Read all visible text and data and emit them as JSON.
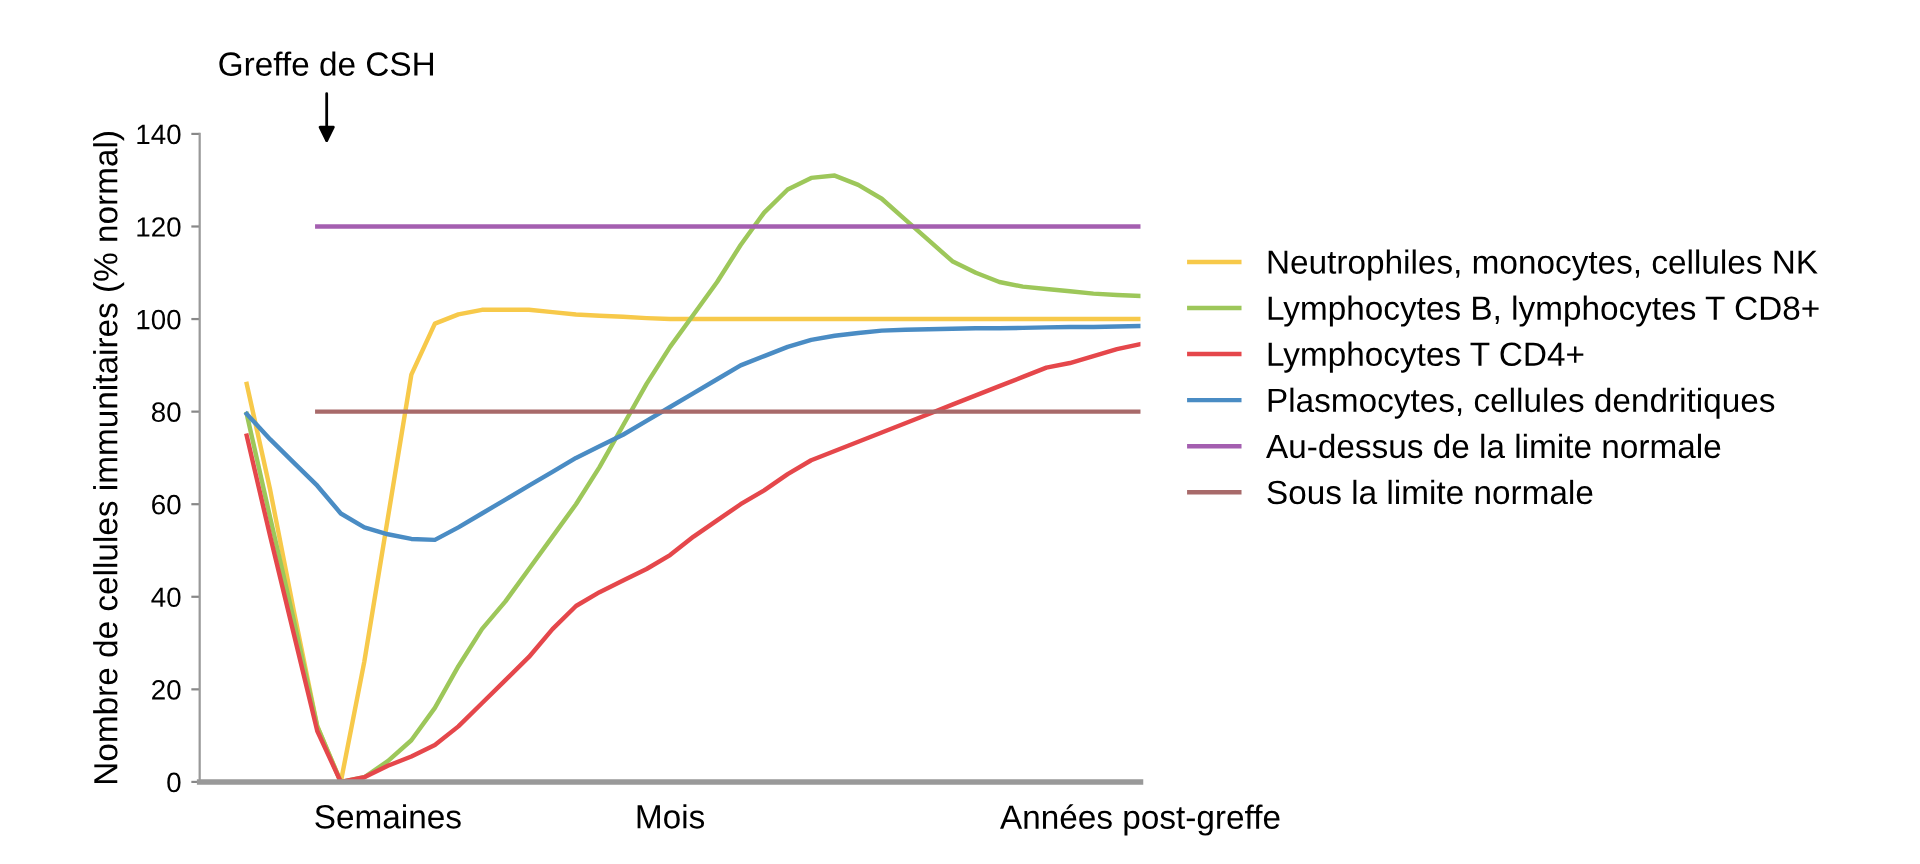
{
  "chart_data": {
    "type": "line",
    "ylabel": "Nombre de cellules immunitaires (% normal)",
    "categories": [
      null,
      null,
      null,
      null,
      null,
      null,
      null,
      null,
      "Semaines",
      null,
      null,
      null,
      null,
      null,
      null,
      null,
      null,
      null,
      null,
      null,
      "Mois",
      null,
      null,
      null,
      null,
      null,
      null,
      null,
      null,
      null,
      null,
      null,
      null,
      null,
      null,
      null,
      null,
      null,
      null,
      null,
      "Années post-greffe"
    ],
    "ylim": [
      0,
      140
    ],
    "yticks": [
      0,
      20,
      40,
      60,
      80,
      100,
      120,
      140
    ],
    "legend": "right",
    "line_style": "solid",
    "annotations": [
      "Greffe de CSH"
    ],
    "series": [
      {
        "name": "Neutrophiles, monocytes, cellules NK",
        "color": "#f7c94a",
        "values": [
          null,
          null,
          86,
          63,
          37,
          12,
          0,
          26,
          57,
          88,
          99,
          101,
          102,
          102,
          102,
          101.5,
          101,
          100.7,
          100.5,
          100.2,
          100,
          100,
          100,
          100,
          100,
          100,
          100,
          100,
          100,
          100,
          100,
          100,
          100,
          100,
          100,
          100,
          100,
          100,
          100,
          100,
          100
        ]
      },
      {
        "name": "Lymphocytes B, lymphocytes T CD8+",
        "color": "#9dc75a",
        "values": [
          null,
          null,
          79.5,
          57,
          35,
          12,
          0,
          1,
          4.5,
          9,
          16,
          25,
          33,
          39,
          46,
          53,
          60,
          68,
          77,
          86,
          94,
          101,
          108,
          116,
          123,
          128,
          130.5,
          131,
          129,
          126,
          121.5,
          117,
          112.5,
          110,
          108,
          107,
          106.5,
          106,
          105.5,
          105.2,
          105
        ]
      },
      {
        "name": "Lymphocytes T CD4+",
        "color": "#e5474b",
        "values": [
          null,
          null,
          74.8,
          53,
          32,
          11,
          0,
          1,
          3.5,
          5.5,
          8,
          12,
          17,
          22,
          27,
          33,
          38,
          41,
          43.5,
          46,
          49,
          53,
          56.5,
          60,
          63,
          66.5,
          69.5,
          71.5,
          73.5,
          75.5,
          77.5,
          79.5,
          81.5,
          83.5,
          85.5,
          87.5,
          89.5,
          90.5,
          92,
          93.5,
          94.6
        ]
      },
      {
        "name": "Plasmocytes, cellules dendritiques",
        "color": "#4a8cc4",
        "values": [
          null,
          null,
          79.5,
          74,
          69,
          64,
          58,
          55,
          53.5,
          52.5,
          52.3,
          55,
          58,
          61,
          64,
          67,
          70,
          72.5,
          75,
          78,
          81,
          84,
          87,
          90,
          92,
          94,
          95.5,
          96.4,
          97,
          97.5,
          97.7,
          97.8,
          97.9,
          98,
          98,
          98.1,
          98.2,
          98.3,
          98.3,
          98.4,
          98.5
        ]
      },
      {
        "name": "Au-dessus de la limite normale",
        "color": "#a45fb0",
        "values": [
          null,
          null,
          null,
          null,
          null,
          120,
          120,
          120,
          120,
          120,
          120,
          120,
          120,
          120,
          120,
          120,
          120,
          120,
          120,
          120,
          120,
          120,
          120,
          120,
          120,
          120,
          120,
          120,
          120,
          120,
          120,
          120,
          120,
          120,
          120,
          120,
          120,
          120,
          120,
          120,
          120
        ]
      },
      {
        "name": "Sous la limite normale",
        "color": "#a86a6a",
        "values": [
          null,
          null,
          null,
          null,
          null,
          80,
          80,
          80,
          80,
          80,
          80,
          80,
          80,
          80,
          80,
          80,
          80,
          80,
          80,
          80,
          80,
          80,
          80,
          80,
          80,
          80,
          80,
          80,
          80,
          80,
          80,
          80,
          80,
          80,
          80,
          80,
          80,
          80,
          80,
          80,
          80
        ]
      }
    ]
  }
}
